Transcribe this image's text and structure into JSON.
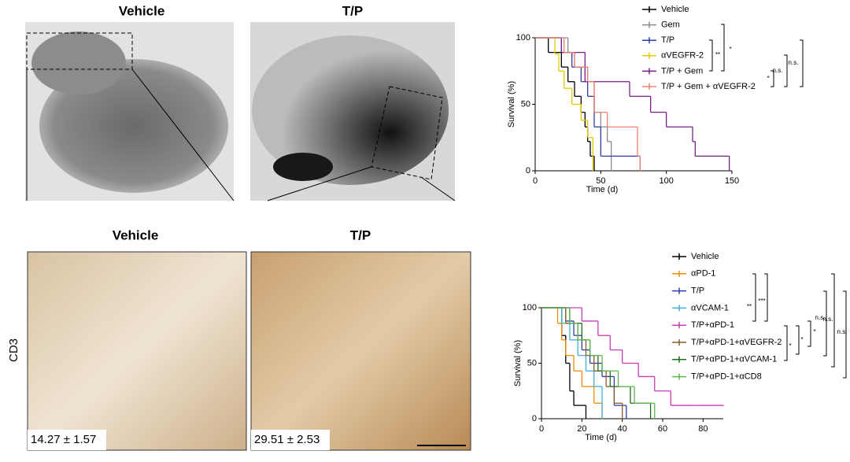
{
  "panels": {
    "top_left": "Vehicle",
    "top_right": "T/P",
    "bottom_left": "Vehicle",
    "bottom_right": "T/P",
    "row_label": "CD3",
    "left_count": "14.27 ± 1.57",
    "right_count": "29.51 ± 2.53"
  },
  "chart_data": [
    {
      "type": "step",
      "xlabel": "Time (d)",
      "ylabel": "Survival (%)",
      "xlim": [
        0,
        150
      ],
      "xticks": [
        0,
        50,
        100,
        150
      ],
      "ylim": [
        0,
        100
      ],
      "yticks": [
        0,
        50,
        100
      ],
      "series": [
        {
          "name": "Vehicle",
          "color": "#000000",
          "x": [
            0,
            10,
            20,
            25,
            30,
            35,
            38,
            40,
            42,
            45
          ],
          "values": [
            100,
            89,
            78,
            67,
            56,
            44,
            33,
            22,
            11,
            0
          ]
        },
        {
          "name": "Gem",
          "color": "#8c8c8c",
          "x": [
            0,
            25,
            30,
            40,
            45,
            50,
            55,
            58
          ],
          "values": [
            100,
            89,
            78,
            67,
            44,
            33,
            22,
            0
          ]
        },
        {
          "name": "T/P",
          "color": "#2b3fa8",
          "x": [
            0,
            20,
            28,
            35,
            40,
            45,
            50,
            80
          ],
          "values": [
            100,
            89,
            78,
            67,
            56,
            33,
            11,
            0
          ]
        },
        {
          "name": "αVEGFR-2",
          "color": "#e6c800",
          "x": [
            0,
            15,
            18,
            22,
            28,
            35,
            40,
            44
          ],
          "values": [
            100,
            88,
            75,
            62,
            50,
            38,
            25,
            0
          ]
        },
        {
          "name": "T/P + Gem",
          "color": "#7b1f8c",
          "x": [
            0,
            20,
            38,
            72,
            88,
            100,
            120,
            122,
            148
          ],
          "values": [
            100,
            89,
            67,
            56,
            44,
            33,
            22,
            11,
            0
          ]
        },
        {
          "name": "T/P + Gem + αVEGFR-2",
          "color": "#f08070",
          "x": [
            0,
            22,
            30,
            40,
            45,
            55,
            78,
            80
          ],
          "values": [
            100,
            89,
            78,
            67,
            44,
            33,
            11,
            0
          ]
        }
      ],
      "annotations": [
        "**",
        "*",
        "*",
        "n.s.",
        "n.s."
      ]
    },
    {
      "type": "step",
      "xlabel": "Time (d)",
      "ylabel": "Survival (%)",
      "xlim": [
        0,
        90
      ],
      "xticks": [
        0,
        20,
        40,
        60,
        80
      ],
      "ylim": [
        0,
        100
      ],
      "yticks": [
        0,
        50,
        100
      ],
      "series": [
        {
          "name": "Vehicle",
          "color": "#000000",
          "x": [
            0,
            10,
            12,
            14,
            16,
            22
          ],
          "values": [
            100,
            75,
            50,
            25,
            12,
            0
          ]
        },
        {
          "name": "αPD-1",
          "color": "#f08c00",
          "x": [
            0,
            8,
            10,
            12,
            16,
            20,
            26,
            30
          ],
          "values": [
            100,
            86,
            71,
            57,
            43,
            29,
            14,
            0
          ]
        },
        {
          "name": "T/P",
          "color": "#2b3fa8",
          "x": [
            0,
            12,
            16,
            20,
            24,
            30,
            36,
            42
          ],
          "values": [
            100,
            88,
            75,
            62,
            50,
            38,
            12,
            0
          ]
        },
        {
          "name": "αVCAM-1",
          "color": "#40b0d8",
          "x": [
            0,
            10,
            14,
            18,
            22,
            26,
            30
          ],
          "values": [
            100,
            86,
            71,
            57,
            43,
            29,
            0
          ]
        },
        {
          "name": "T/P+αPD-1",
          "color": "#c83cb4",
          "x": [
            0,
            20,
            28,
            34,
            40,
            48,
            56,
            64,
            76,
            90
          ],
          "values": [
            100,
            88,
            75,
            62,
            50,
            38,
            25,
            12,
            12,
            12
          ]
        },
        {
          "name": "T/P+αPD-1+αVEGFR-2",
          "color": "#8b5a2b",
          "x": [
            0,
            12,
            18,
            22,
            26,
            32,
            36,
            40
          ],
          "values": [
            100,
            86,
            71,
            57,
            43,
            29,
            14,
            0
          ]
        },
        {
          "name": "T/P+αPD-1+αVCAM-1",
          "color": "#1e6e1e",
          "x": [
            0,
            14,
            20,
            24,
            28,
            34,
            44,
            54
          ],
          "values": [
            100,
            86,
            71,
            57,
            43,
            29,
            14,
            0
          ]
        },
        {
          "name": "T/P+αPD-1+αCD8",
          "color": "#60b850",
          "x": [
            0,
            14,
            18,
            24,
            30,
            38,
            46,
            56
          ],
          "values": [
            100,
            86,
            71,
            57,
            43,
            29,
            14,
            0
          ]
        }
      ],
      "annotations": [
        "**",
        "***",
        "*",
        "*",
        "*",
        "n.s.",
        "n.s.",
        "n.s."
      ]
    }
  ]
}
